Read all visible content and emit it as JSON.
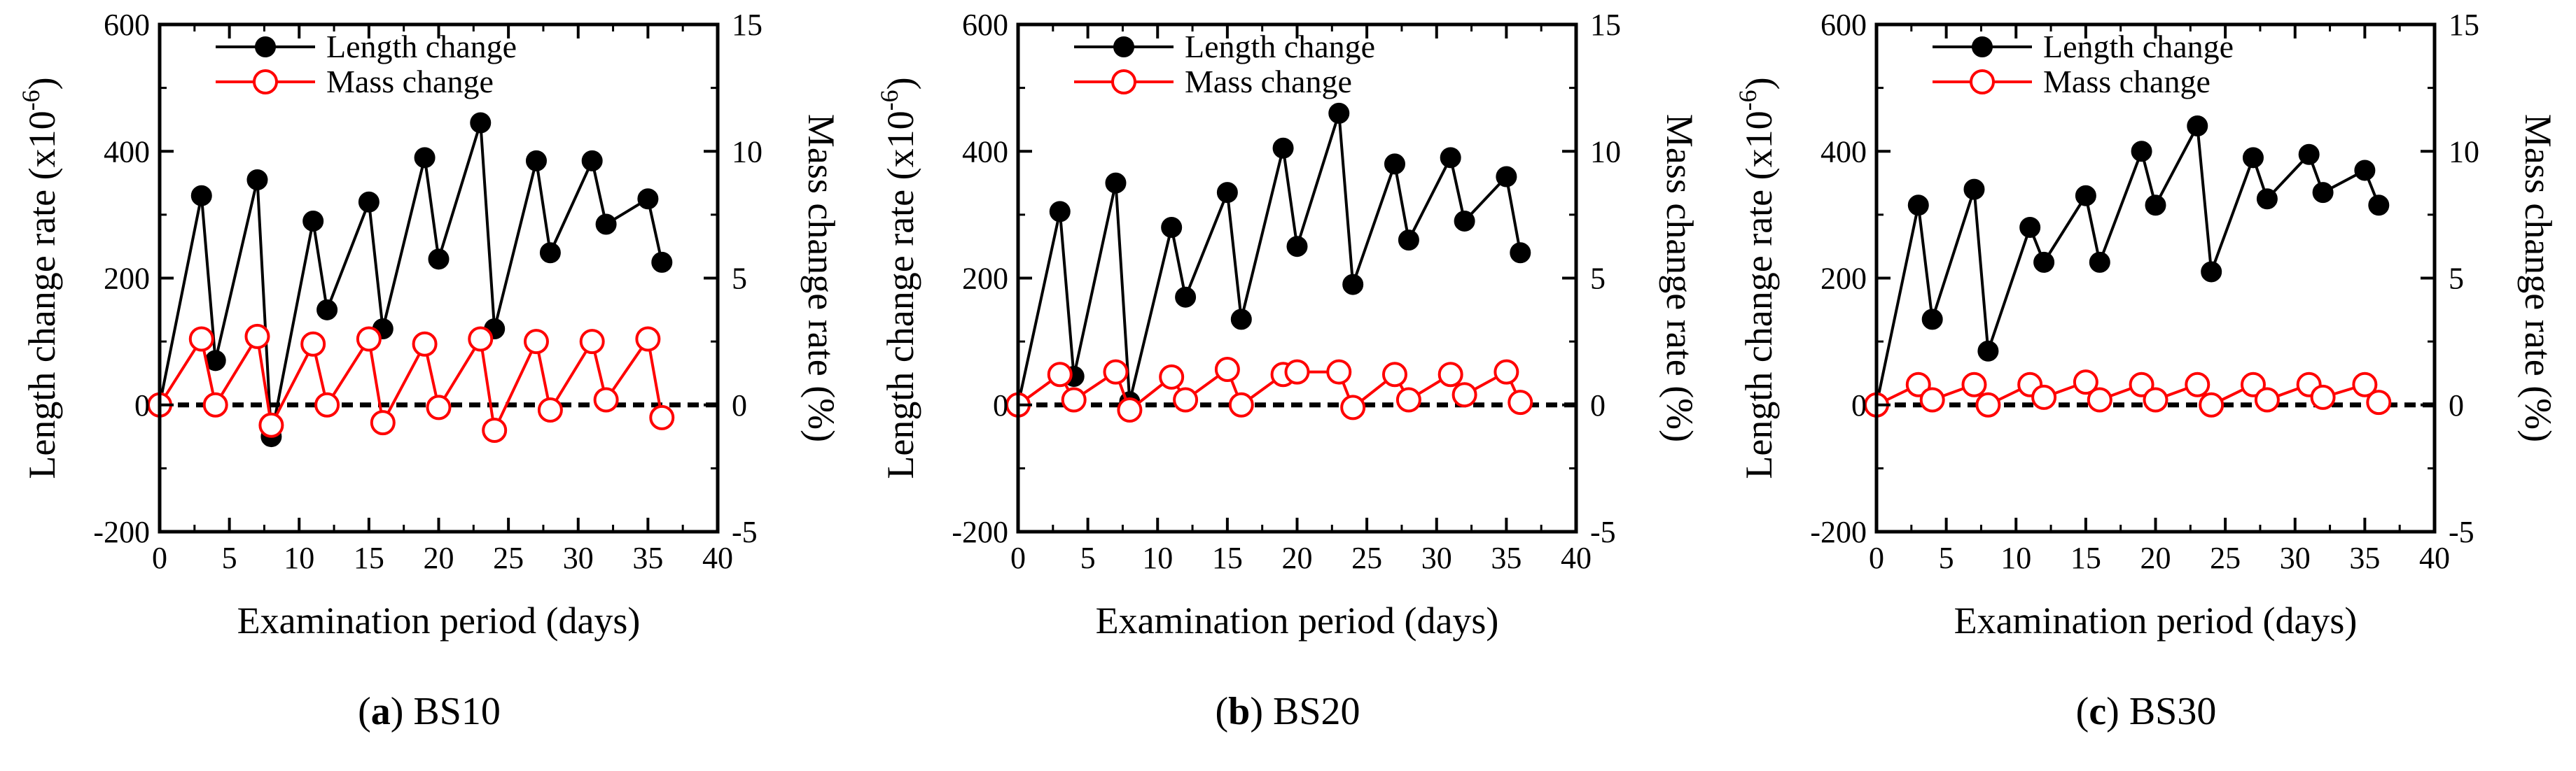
{
  "chart_data": [
    {
      "type": "line",
      "panel_letter": "a",
      "panel_name": "BS10",
      "xlabel": "Examination period (days)",
      "ylabel": "Length change rate (x10",
      "ylabel_exponent": "-6",
      "ylabel_suffix": ")",
      "y2label": "Mass change rate (%)",
      "xlim": [
        0,
        40
      ],
      "ylim": [
        -200,
        600
      ],
      "y2lim": [
        -5,
        15
      ],
      "xticks": [
        "0",
        "5",
        "10",
        "15",
        "20",
        "25",
        "30",
        "35",
        "40"
      ],
      "yticks": [
        "-200",
        "0",
        "200",
        "400",
        "600"
      ],
      "y2ticks": [
        "-5",
        "0",
        "5",
        "10",
        "15"
      ],
      "legend": "top-left",
      "reference_line": 0,
      "series": [
        {
          "name": "Length change",
          "axis": "left",
          "color": "#000000",
          "marker": "filled-circle",
          "x": [
            0,
            3,
            4,
            7,
            8,
            11,
            12,
            15,
            16,
            19,
            20,
            23,
            24,
            27,
            28,
            31,
            32,
            35,
            36
          ],
          "values": [
            0,
            330,
            70,
            355,
            -50,
            290,
            150,
            320,
            120,
            390,
            230,
            445,
            120,
            385,
            240,
            385,
            285,
            325,
            225
          ]
        },
        {
          "name": "Mass change",
          "axis": "right",
          "color": "#ff0000",
          "marker": "open-circle",
          "x": [
            0,
            3,
            4,
            7,
            8,
            11,
            12,
            15,
            16,
            19,
            20,
            23,
            24,
            27,
            28,
            31,
            32,
            35,
            36
          ],
          "values": [
            0,
            2.6,
            0,
            2.7,
            -0.8,
            2.4,
            0,
            2.6,
            -0.7,
            2.4,
            -0.1,
            2.6,
            -1.0,
            2.5,
            -0.2,
            2.5,
            0.2,
            2.6,
            -0.5
          ]
        }
      ]
    },
    {
      "type": "line",
      "panel_letter": "b",
      "panel_name": "BS20",
      "xlabel": "Examination period (days)",
      "ylabel": "Length change rate (x10",
      "ylabel_exponent": "-6",
      "ylabel_suffix": ")",
      "y2label": "Mass change rate (%)",
      "xlim": [
        0,
        40
      ],
      "ylim": [
        -200,
        600
      ],
      "y2lim": [
        -5,
        15
      ],
      "xticks": [
        "0",
        "5",
        "10",
        "15",
        "20",
        "25",
        "30",
        "35",
        "40"
      ],
      "yticks": [
        "-200",
        "0",
        "200",
        "400",
        "600"
      ],
      "y2ticks": [
        "-5",
        "0",
        "5",
        "10",
        "15"
      ],
      "legend": "top-left",
      "reference_line": 0,
      "series": [
        {
          "name": "Length change",
          "axis": "left",
          "color": "#000000",
          "marker": "filled-circle",
          "x": [
            0,
            3,
            4,
            7,
            8,
            11,
            12,
            15,
            16,
            19,
            20,
            23,
            24,
            27,
            28,
            31,
            32,
            35,
            36
          ],
          "values": [
            0,
            305,
            45,
            350,
            5,
            280,
            170,
            335,
            135,
            405,
            250,
            460,
            190,
            380,
            260,
            390,
            290,
            360,
            240
          ]
        },
        {
          "name": "Mass change",
          "axis": "right",
          "color": "#ff0000",
          "marker": "open-circle",
          "x": [
            0,
            3,
            4,
            7,
            8,
            11,
            12,
            15,
            16,
            19,
            20,
            23,
            24,
            27,
            28,
            31,
            32,
            35,
            36
          ],
          "values": [
            0,
            1.2,
            0.2,
            1.3,
            -0.2,
            1.1,
            0.2,
            1.4,
            0,
            1.2,
            1.3,
            1.3,
            -0.1,
            1.2,
            0.2,
            1.2,
            0.4,
            1.3,
            0.1
          ]
        }
      ]
    },
    {
      "type": "line",
      "panel_letter": "c",
      "panel_name": "BS30",
      "xlabel": "Examination period (days)",
      "ylabel": "Length change rate (x10",
      "ylabel_exponent": "-6",
      "ylabel_suffix": ")",
      "y2label": "Mass change rate (%)",
      "xlim": [
        0,
        40
      ],
      "ylim": [
        -200,
        600
      ],
      "y2lim": [
        -5,
        15
      ],
      "xticks": [
        "0",
        "5",
        "10",
        "15",
        "20",
        "25",
        "30",
        "35",
        "40"
      ],
      "yticks": [
        "-200",
        "0",
        "200",
        "400",
        "600"
      ],
      "y2ticks": [
        "-5",
        "0",
        "5",
        "10",
        "15"
      ],
      "legend": "top-left",
      "reference_line": 0,
      "series": [
        {
          "name": "Length change",
          "axis": "left",
          "color": "#000000",
          "marker": "filled-circle",
          "x": [
            0,
            3,
            4,
            7,
            8,
            11,
            12,
            15,
            16,
            19,
            20,
            23,
            24,
            27,
            28,
            31,
            32,
            35,
            36
          ],
          "values": [
            0,
            315,
            135,
            340,
            85,
            280,
            225,
            330,
            225,
            400,
            315,
            440,
            210,
            390,
            325,
            395,
            335,
            370,
            315
          ]
        },
        {
          "name": "Mass change",
          "axis": "right",
          "color": "#ff0000",
          "marker": "open-circle",
          "x": [
            0,
            3,
            4,
            7,
            8,
            11,
            12,
            15,
            16,
            19,
            20,
            23,
            24,
            27,
            28,
            31,
            32,
            35,
            36
          ],
          "values": [
            0,
            0.8,
            0.2,
            0.8,
            0,
            0.8,
            0.3,
            0.9,
            0.2,
            0.8,
            0.2,
            0.8,
            0,
            0.8,
            0.2,
            0.8,
            0.3,
            0.8,
            0.1
          ]
        }
      ]
    }
  ]
}
